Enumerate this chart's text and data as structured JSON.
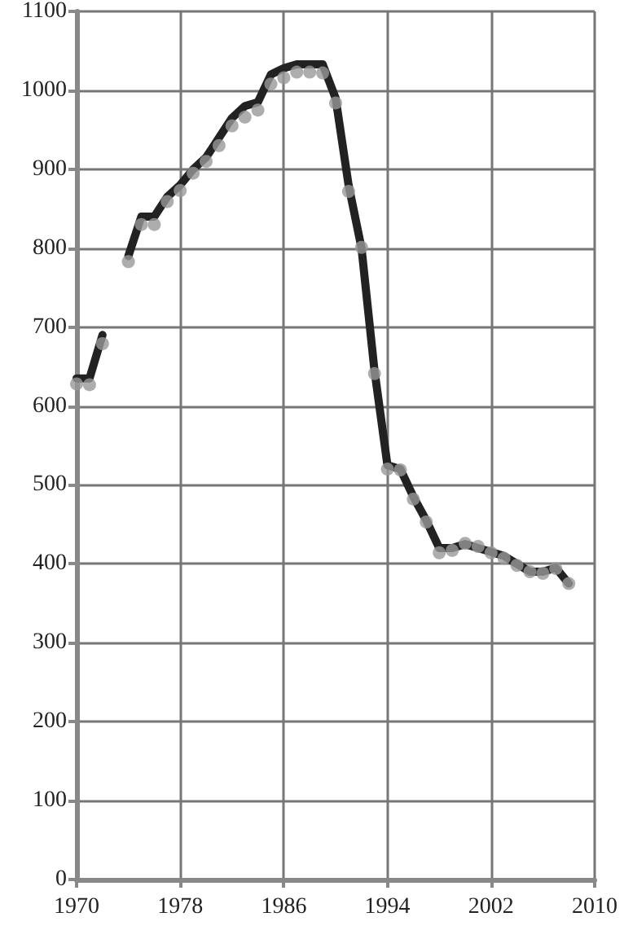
{
  "chart_data": {
    "type": "line",
    "x": [
      1970,
      1971,
      1972,
      1973,
      1974,
      1975,
      1976,
      1977,
      1978,
      1979,
      1980,
      1981,
      1982,
      1983,
      1984,
      1985,
      1986,
      1987,
      1988,
      1989,
      1990,
      1991,
      1992,
      1993,
      1994,
      1995,
      1996,
      1997,
      1998,
      1999,
      2000,
      2001,
      2002,
      2003,
      2004,
      2005,
      2006,
      2007,
      2008
    ],
    "series": [
      {
        "marker": "none",
        "color": "#222222",
        "values": [
          635,
          635,
          690,
          null,
          790,
          840,
          840,
          865,
          880,
          900,
          915,
          940,
          965,
          980,
          985,
          1020,
          1028,
          1033,
          1033,
          1033,
          990,
          880,
          800,
          645,
          525,
          520,
          485,
          455,
          420,
          420,
          425,
          420,
          415,
          410,
          400,
          390,
          390,
          395,
          375
        ]
      },
      {
        "type": "scatter",
        "marker": "circle",
        "color": "#999999",
        "values": [
          628,
          627,
          679,
          null,
          783,
          830,
          830,
          859,
          873,
          895,
          910,
          930,
          955,
          966,
          975,
          1008,
          1016,
          1023,
          1023,
          1022,
          984,
          872,
          801,
          641,
          520,
          519,
          482,
          453,
          414,
          417,
          426,
          422,
          414,
          407,
          398,
          390,
          388,
          394,
          375
        ]
      }
    ],
    "xlim": [
      1970,
      2010
    ],
    "xticks": [
      1970,
      1978,
      1986,
      1994,
      2002,
      2010
    ],
    "ylim": [
      0,
      1100
    ],
    "yticks": [
      0,
      100,
      200,
      300,
      400,
      500,
      600,
      700,
      800,
      900,
      1000,
      1100
    ],
    "grid": true
  }
}
